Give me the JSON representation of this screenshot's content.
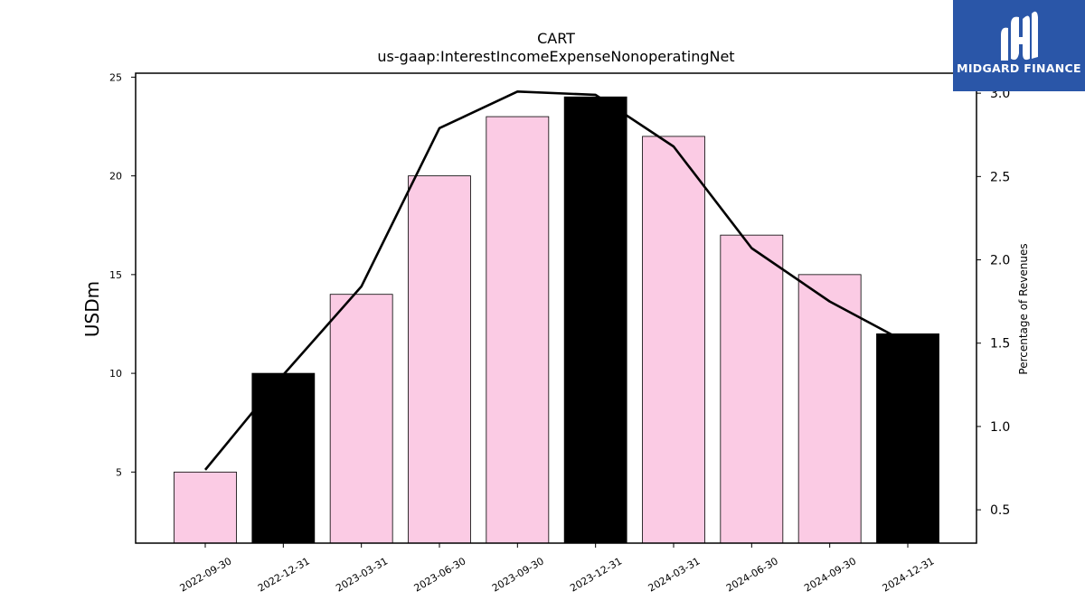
{
  "chart_data": {
    "type": "bar",
    "title": "CART",
    "subtitle": "us-gaap:InterestIncomeExpenseNonoperatingNet",
    "ylabel": "USDm",
    "ylabel_right": "Percentage of Revenues",
    "categories": [
      "2022-09-30",
      "2022-12-31",
      "2023-03-31",
      "2023-06-30",
      "2023-09-30",
      "2023-12-31",
      "2024-03-31",
      "2024-06-30",
      "2024-09-30",
      "2024-12-31"
    ],
    "series": [
      {
        "type": "bar",
        "axis": "left",
        "values": [
          5,
          10,
          14,
          20,
          23,
          24,
          22,
          17,
          15,
          12
        ],
        "colors": [
          "#fbcbe4",
          "#000000",
          "#fbcbe4",
          "#fbcbe4",
          "#fbcbe4",
          "#000000",
          "#fbcbe4",
          "#fbcbe4",
          "#fbcbe4",
          "#000000"
        ]
      },
      {
        "type": "line",
        "axis": "right",
        "color": "#000000",
        "values": [
          0.74,
          1.31,
          1.84,
          2.79,
          3.01,
          2.99,
          2.68,
          2.07,
          1.75,
          1.5
        ]
      }
    ],
    "ylim": [
      1.4,
      25.2
    ],
    "ylim_right": [
      0.3,
      3.12
    ],
    "yticks": [
      5,
      10,
      15,
      20,
      25
    ],
    "yticks_right": [
      "0.5",
      "1.0",
      "1.5",
      "2.0",
      "2.5",
      "3.0"
    ],
    "grid": false
  },
  "logo": {
    "text": "MIDGARD FINANCE",
    "background": "#2a56a8"
  }
}
